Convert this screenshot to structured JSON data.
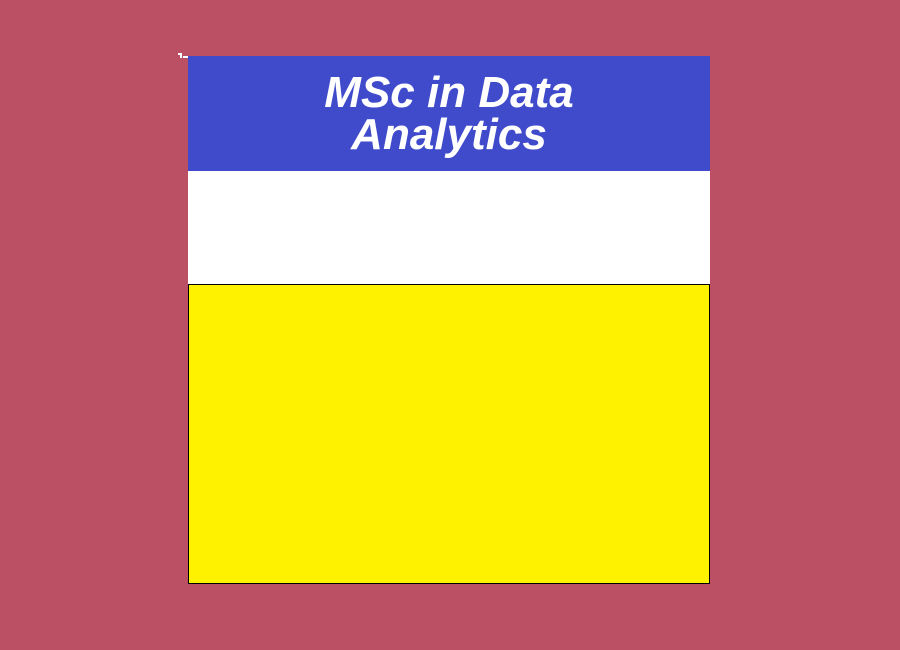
{
  "colors": {
    "background": "#bb4f63",
    "header": "#404bcc",
    "title_text": "#ffffff",
    "middle_panel": "#ffffff",
    "bottom_panel": "#fff200",
    "bottom_border": "#000000"
  },
  "header": {
    "title": "MSc in Data Analytics"
  }
}
